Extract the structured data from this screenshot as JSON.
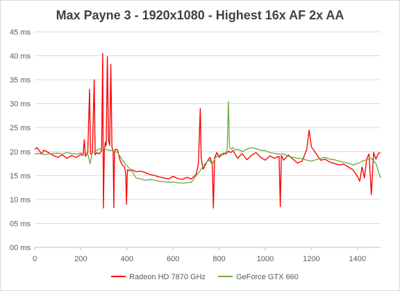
{
  "chart_data": {
    "type": "line",
    "title": "Max Payne 3 - 1920x1080 - Highest 16x AF 2x AA",
    "xlabel": "",
    "ylabel": "",
    "xlim": [
      0,
      1500
    ],
    "ylim": [
      0,
      45
    ],
    "x_ticks": [
      0,
      200,
      400,
      600,
      800,
      1000,
      1200,
      1400
    ],
    "y_ticks": [
      0,
      5,
      10,
      15,
      20,
      25,
      30,
      35,
      40,
      45
    ],
    "y_tick_labels": [
      "00 ms",
      "05 ms",
      "10 ms",
      "15 ms",
      "20 ms",
      "25 ms",
      "30 ms",
      "35 ms",
      "40 ms",
      "45 ms"
    ],
    "grid": "horizontal",
    "legend_position": "bottom",
    "series": [
      {
        "name": "Radeon HD 7870 GHz",
        "color": "#ff0000",
        "x": [
          0,
          10,
          20,
          30,
          40,
          60,
          80,
          100,
          120,
          140,
          160,
          180,
          200,
          210,
          215,
          220,
          230,
          238,
          242,
          250,
          258,
          262,
          270,
          280,
          290,
          295,
          298,
          302,
          306,
          310,
          315,
          320,
          325,
          330,
          335,
          340,
          343,
          346,
          350,
          360,
          370,
          380,
          390,
          395,
          398,
          402,
          410,
          420,
          440,
          460,
          480,
          500,
          520,
          540,
          560,
          580,
          600,
          620,
          640,
          660,
          680,
          690,
          700,
          710,
          718,
          722,
          730,
          740,
          750,
          760,
          770,
          775,
          780,
          790,
          800,
          810,
          820,
          830,
          840,
          850,
          860,
          880,
          900,
          920,
          940,
          960,
          980,
          1000,
          1020,
          1040,
          1060,
          1065,
          1070,
          1080,
          1100,
          1120,
          1140,
          1160,
          1180,
          1190,
          1200,
          1220,
          1240,
          1260,
          1280,
          1300,
          1320,
          1340,
          1360,
          1380,
          1400,
          1410,
          1420,
          1430,
          1440,
          1450,
          1460,
          1470,
          1480,
          1490,
          1500
        ],
        "values": [
          20.5,
          20.8,
          20.2,
          19.5,
          20.3,
          19.8,
          19.2,
          18.8,
          19.3,
          18.6,
          19.2,
          18.8,
          19.4,
          19.2,
          22.5,
          19.0,
          19.8,
          33.0,
          19.5,
          19.6,
          35.0,
          19.3,
          19.8,
          19.5,
          20.2,
          40.5,
          8.2,
          20.3,
          22.0,
          21.2,
          39.8,
          22.5,
          21.3,
          38.2,
          21.0,
          20.1,
          8.3,
          20.0,
          20.5,
          20.3,
          18.2,
          17.2,
          16.8,
          15.2,
          9.0,
          16.2,
          16.0,
          16.2,
          15.8,
          15.9,
          15.6,
          15.2,
          15.0,
          14.7,
          14.5,
          14.3,
          14.8,
          14.4,
          14.2,
          14.6,
          14.3,
          14.8,
          15.2,
          17.5,
          29.0,
          18.8,
          16.3,
          17.2,
          18.1,
          18.8,
          17.5,
          8.2,
          18.7,
          19.8,
          18.8,
          19.3,
          19.7,
          19.5,
          20.1,
          19.8,
          20.2,
          18.6,
          19.6,
          18.3,
          19.2,
          19.8,
          18.8,
          18.2,
          19.1,
          18.6,
          19.0,
          8.5,
          19.2,
          18.2,
          19.3,
          18.4,
          17.6,
          18.0,
          20.5,
          24.5,
          21.0,
          19.6,
          18.2,
          18.4,
          17.8,
          17.5,
          17.2,
          17.4,
          16.8,
          16.2,
          14.8,
          13.8,
          16.8,
          14.5,
          18.5,
          19.5,
          11.0,
          19.8,
          18.4,
          19.6,
          19.8
        ]
      },
      {
        "name": "GeForce GTX 660",
        "color": "#70ad47",
        "x": [
          0,
          20,
          40,
          60,
          80,
          100,
          120,
          140,
          160,
          180,
          200,
          210,
          220,
          230,
          240,
          250,
          260,
          270,
          280,
          300,
          320,
          340,
          360,
          380,
          400,
          420,
          440,
          460,
          480,
          500,
          520,
          540,
          560,
          580,
          600,
          620,
          640,
          660,
          680,
          700,
          710,
          720,
          730,
          740,
          750,
          760,
          770,
          780,
          790,
          800,
          810,
          820,
          830,
          835,
          840,
          845,
          850,
          860,
          870,
          880,
          900,
          920,
          940,
          960,
          980,
          1000,
          1020,
          1040,
          1060,
          1080,
          1100,
          1120,
          1140,
          1160,
          1180,
          1200,
          1220,
          1240,
          1260,
          1280,
          1300,
          1320,
          1340,
          1360,
          1380,
          1400,
          1420,
          1440,
          1460,
          1480,
          1490,
          1500
        ],
        "values": [
          19.5,
          19.6,
          19.4,
          19.5,
          19.6,
          19.7,
          19.5,
          19.8,
          19.6,
          19.5,
          19.7,
          19.6,
          19.8,
          19.5,
          17.5,
          19.8,
          20.0,
          20.3,
          20.5,
          20.6,
          20.3,
          20.2,
          19.8,
          18.2,
          17.0,
          16.0,
          14.5,
          14.3,
          14.0,
          14.2,
          14.0,
          13.8,
          13.7,
          13.6,
          13.6,
          13.5,
          13.4,
          13.5,
          13.6,
          15.0,
          15.5,
          16.2,
          17.0,
          17.5,
          18.0,
          18.2,
          17.2,
          18.5,
          19.0,
          19.2,
          19.5,
          19.3,
          20.0,
          20.5,
          30.5,
          21.0,
          20.5,
          20.8,
          20.3,
          20.5,
          20.0,
          20.5,
          20.8,
          20.6,
          20.3,
          20.2,
          19.8,
          19.6,
          19.5,
          19.5,
          19.0,
          18.8,
          18.6,
          18.5,
          18.2,
          18.0,
          18.3,
          18.6,
          18.8,
          18.4,
          18.3,
          18.0,
          17.8,
          17.6,
          17.2,
          17.5,
          18.0,
          18.3,
          18.6,
          17.5,
          16.0,
          14.5
        ]
      }
    ]
  }
}
